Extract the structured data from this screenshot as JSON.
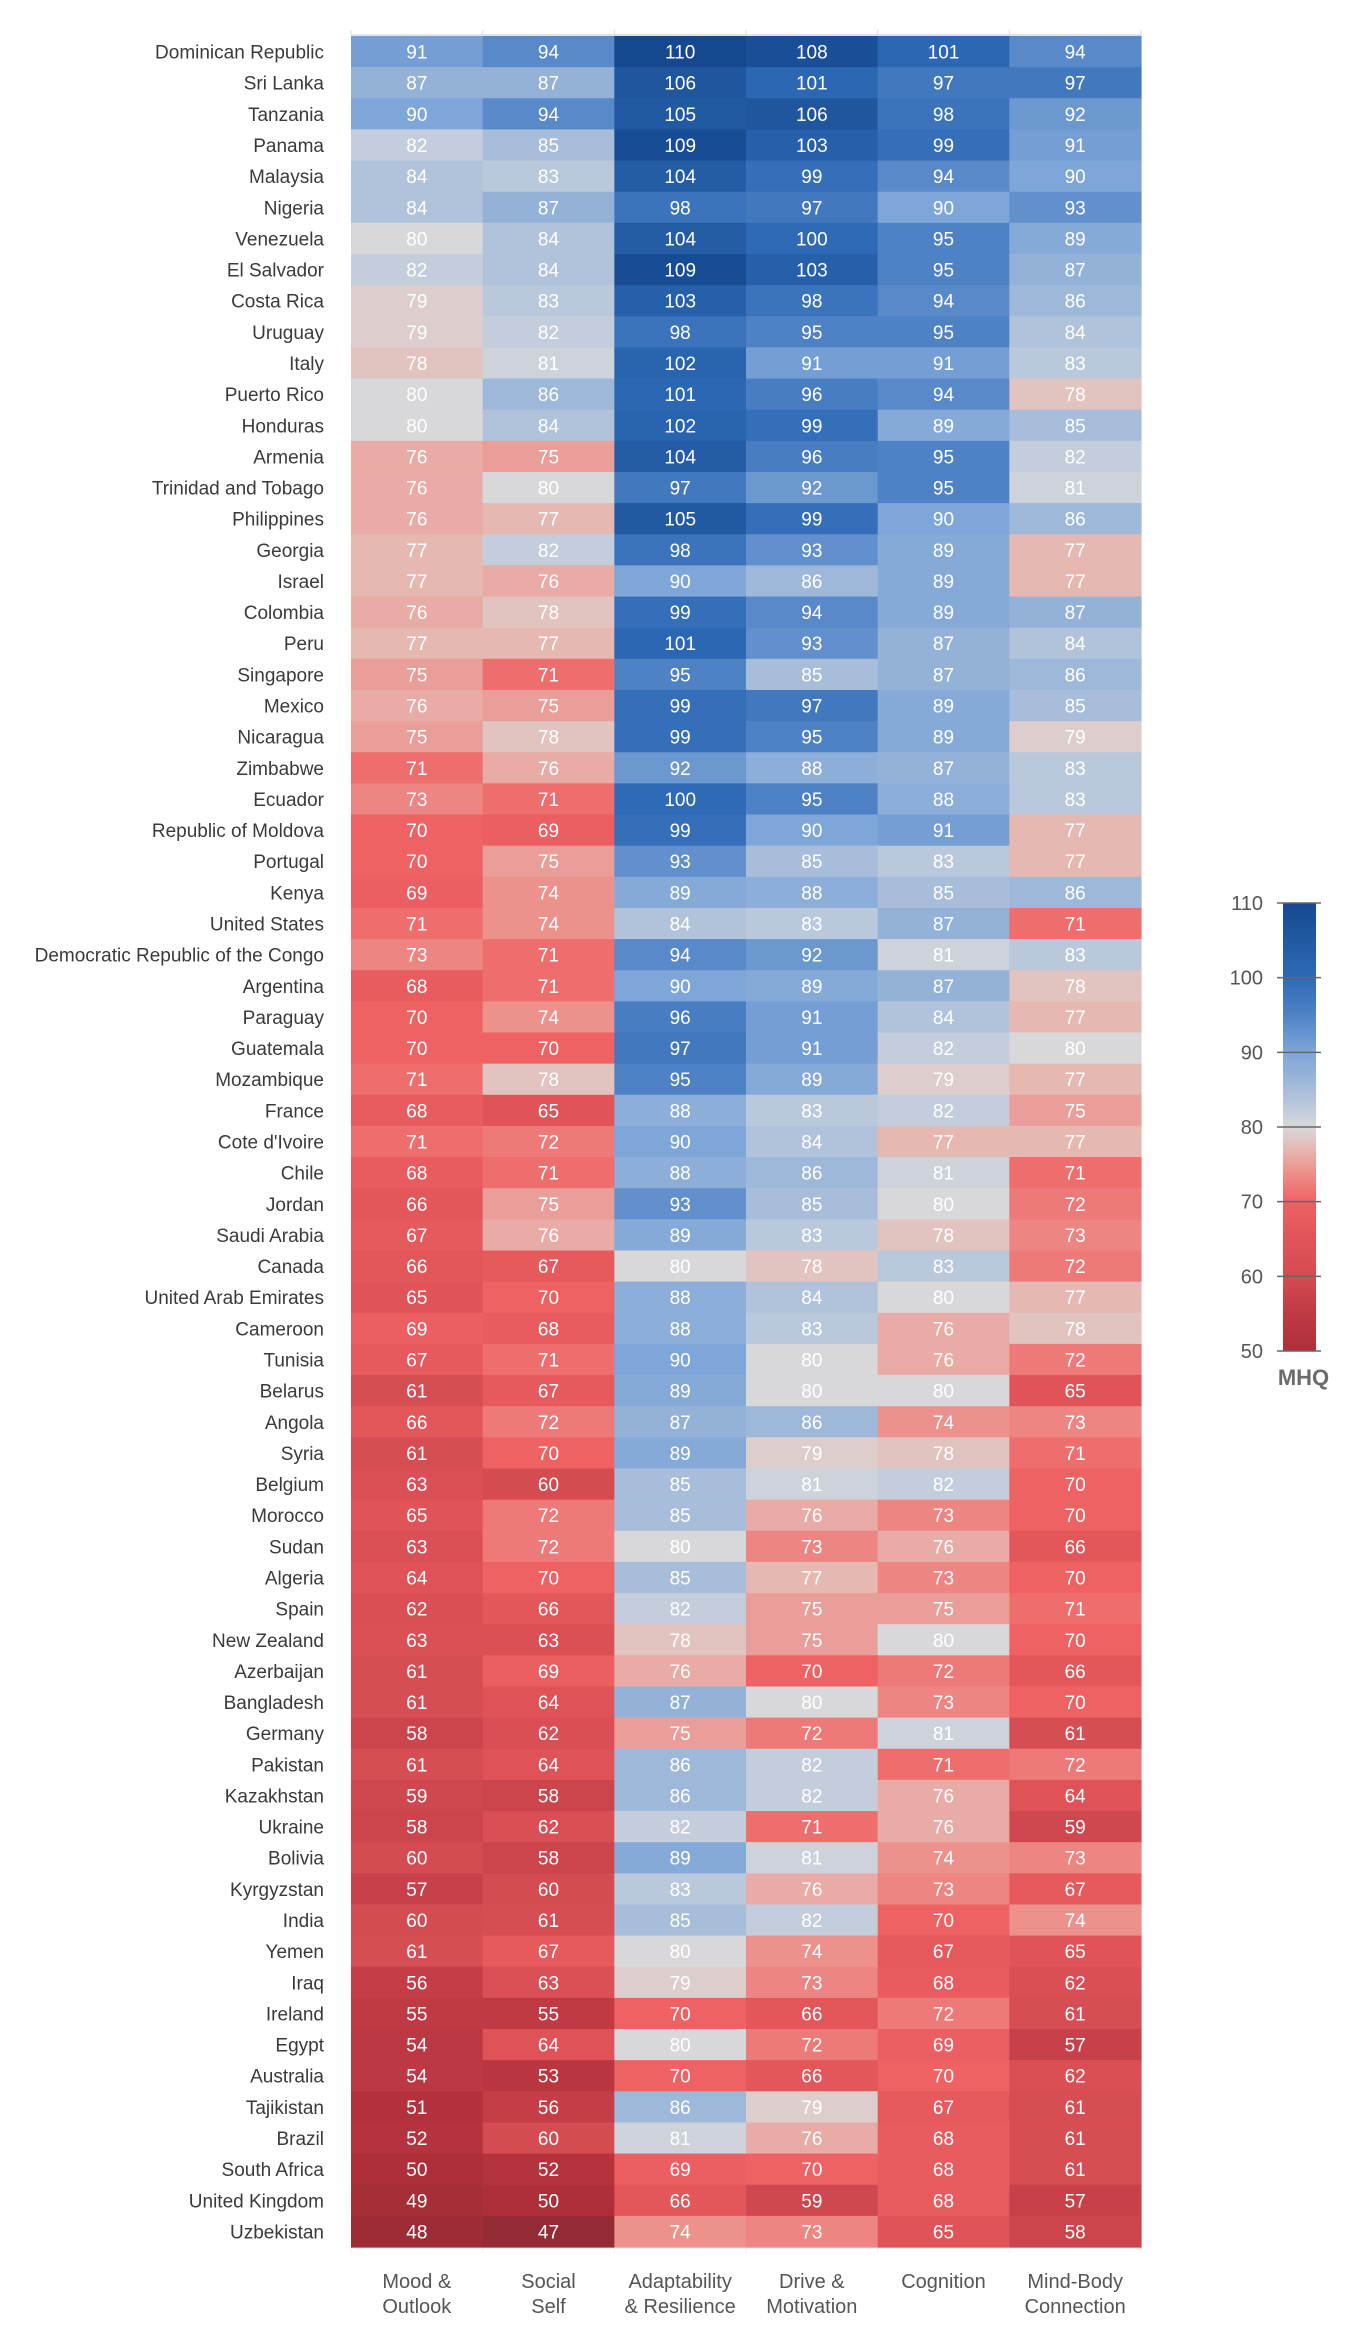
{
  "chart_data": {
    "type": "heatmap",
    "title": "",
    "xlabel": "",
    "ylabel": "",
    "columns": [
      [
        "Mood &",
        "Outlook"
      ],
      [
        "Social",
        "Self"
      ],
      [
        "Adaptability",
        "& Resilience"
      ],
      [
        "Drive &",
        "Motivation"
      ],
      [
        "Cognition"
      ],
      [
        "Mind-Body",
        "Connection"
      ]
    ],
    "rows": [
      {
        "country": "Dominican Republic",
        "values": [
          91,
          94,
          110,
          108,
          101,
          94
        ]
      },
      {
        "country": "Sri Lanka",
        "values": [
          87,
          87,
          106,
          101,
          97,
          97
        ]
      },
      {
        "country": "Tanzania",
        "values": [
          90,
          94,
          105,
          106,
          98,
          92
        ]
      },
      {
        "country": "Panama",
        "values": [
          82,
          85,
          109,
          103,
          99,
          91
        ]
      },
      {
        "country": "Malaysia",
        "values": [
          84,
          83,
          104,
          99,
          94,
          90
        ]
      },
      {
        "country": "Nigeria",
        "values": [
          84,
          87,
          98,
          97,
          90,
          93
        ]
      },
      {
        "country": "Venezuela",
        "values": [
          80,
          84,
          104,
          100,
          95,
          89
        ]
      },
      {
        "country": "El Salvador",
        "values": [
          82,
          84,
          109,
          103,
          95,
          87
        ]
      },
      {
        "country": "Costa Rica",
        "values": [
          79,
          83,
          103,
          98,
          94,
          86
        ]
      },
      {
        "country": "Uruguay",
        "values": [
          79,
          82,
          98,
          95,
          95,
          84
        ]
      },
      {
        "country": "Italy",
        "values": [
          78,
          81,
          102,
          91,
          91,
          83
        ]
      },
      {
        "country": "Puerto Rico",
        "values": [
          80,
          86,
          101,
          96,
          94,
          78
        ]
      },
      {
        "country": "Honduras",
        "values": [
          80,
          84,
          102,
          99,
          89,
          85
        ]
      },
      {
        "country": "Armenia",
        "values": [
          76,
          75,
          104,
          96,
          95,
          82
        ]
      },
      {
        "country": "Trinidad and Tobago",
        "values": [
          76,
          80,
          97,
          92,
          95,
          81
        ]
      },
      {
        "country": "Philippines",
        "values": [
          76,
          77,
          105,
          99,
          90,
          86
        ]
      },
      {
        "country": "Georgia",
        "values": [
          77,
          82,
          98,
          93,
          89,
          77
        ]
      },
      {
        "country": "Israel",
        "values": [
          77,
          76,
          90,
          86,
          89,
          77
        ]
      },
      {
        "country": "Colombia",
        "values": [
          76,
          78,
          99,
          94,
          89,
          87
        ]
      },
      {
        "country": "Peru",
        "values": [
          77,
          77,
          101,
          93,
          87,
          84
        ]
      },
      {
        "country": "Singapore",
        "values": [
          75,
          71,
          95,
          85,
          87,
          86
        ]
      },
      {
        "country": "Mexico",
        "values": [
          76,
          75,
          99,
          97,
          89,
          85
        ]
      },
      {
        "country": "Nicaragua",
        "values": [
          75,
          78,
          99,
          95,
          89,
          79
        ]
      },
      {
        "country": "Zimbabwe",
        "values": [
          71,
          76,
          92,
          88,
          87,
          83
        ]
      },
      {
        "country": "Ecuador",
        "values": [
          73,
          71,
          100,
          95,
          88,
          83
        ]
      },
      {
        "country": "Republic of Moldova",
        "values": [
          70,
          69,
          99,
          90,
          91,
          77
        ]
      },
      {
        "country": "Portugal",
        "values": [
          70,
          75,
          93,
          85,
          83,
          77
        ]
      },
      {
        "country": "Kenya",
        "values": [
          69,
          74,
          89,
          88,
          85,
          86
        ]
      },
      {
        "country": "United States",
        "values": [
          71,
          74,
          84,
          83,
          87,
          71
        ]
      },
      {
        "country": "Democratic Republic of the Congo",
        "values": [
          73,
          71,
          94,
          92,
          81,
          83
        ]
      },
      {
        "country": "Argentina",
        "values": [
          68,
          71,
          90,
          89,
          87,
          78
        ]
      },
      {
        "country": "Paraguay",
        "values": [
          70,
          74,
          96,
          91,
          84,
          77
        ]
      },
      {
        "country": "Guatemala",
        "values": [
          70,
          70,
          97,
          91,
          82,
          80
        ]
      },
      {
        "country": "Mozambique",
        "values": [
          71,
          78,
          95,
          89,
          79,
          77
        ]
      },
      {
        "country": "France",
        "values": [
          68,
          65,
          88,
          83,
          82,
          75
        ]
      },
      {
        "country": "Cote d'Ivoire",
        "values": [
          71,
          72,
          90,
          84,
          77,
          77
        ]
      },
      {
        "country": "Chile",
        "values": [
          68,
          71,
          88,
          86,
          81,
          71
        ]
      },
      {
        "country": "Jordan",
        "values": [
          66,
          75,
          93,
          85,
          80,
          72
        ]
      },
      {
        "country": "Saudi Arabia",
        "values": [
          67,
          76,
          89,
          83,
          78,
          73
        ]
      },
      {
        "country": "Canada",
        "values": [
          66,
          67,
          80,
          78,
          83,
          72
        ]
      },
      {
        "country": "United Arab Emirates",
        "values": [
          65,
          70,
          88,
          84,
          80,
          77
        ]
      },
      {
        "country": "Cameroon",
        "values": [
          69,
          68,
          88,
          83,
          76,
          78
        ]
      },
      {
        "country": "Tunisia",
        "values": [
          67,
          71,
          90,
          80,
          76,
          72
        ]
      },
      {
        "country": "Belarus",
        "values": [
          61,
          67,
          89,
          80,
          80,
          65
        ]
      },
      {
        "country": "Angola",
        "values": [
          66,
          72,
          87,
          86,
          74,
          73
        ]
      },
      {
        "country": "Syria",
        "values": [
          61,
          70,
          89,
          79,
          78,
          71
        ]
      },
      {
        "country": "Belgium",
        "values": [
          63,
          60,
          85,
          81,
          82,
          70
        ]
      },
      {
        "country": "Morocco",
        "values": [
          65,
          72,
          85,
          76,
          73,
          70
        ]
      },
      {
        "country": "Sudan",
        "values": [
          63,
          72,
          80,
          73,
          76,
          66
        ]
      },
      {
        "country": "Algeria",
        "values": [
          64,
          70,
          85,
          77,
          73,
          70
        ]
      },
      {
        "country": "Spain",
        "values": [
          62,
          66,
          82,
          75,
          75,
          71
        ]
      },
      {
        "country": "New Zealand",
        "values": [
          63,
          63,
          78,
          75,
          80,
          70
        ]
      },
      {
        "country": "Azerbaijan",
        "values": [
          61,
          69,
          76,
          70,
          72,
          66
        ]
      },
      {
        "country": "Bangladesh",
        "values": [
          61,
          64,
          87,
          80,
          73,
          70
        ]
      },
      {
        "country": "Germany",
        "values": [
          58,
          62,
          75,
          72,
          81,
          61
        ]
      },
      {
        "country": "Pakistan",
        "values": [
          61,
          64,
          86,
          82,
          71,
          72
        ]
      },
      {
        "country": "Kazakhstan",
        "values": [
          59,
          58,
          86,
          82,
          76,
          64
        ]
      },
      {
        "country": "Ukraine",
        "values": [
          58,
          62,
          82,
          71,
          76,
          59
        ]
      },
      {
        "country": "Bolivia",
        "values": [
          60,
          58,
          89,
          81,
          74,
          73
        ]
      },
      {
        "country": "Kyrgyzstan",
        "values": [
          57,
          60,
          83,
          76,
          73,
          67
        ]
      },
      {
        "country": "India",
        "values": [
          60,
          61,
          85,
          82,
          70,
          74
        ]
      },
      {
        "country": "Yemen",
        "values": [
          61,
          67,
          80,
          74,
          67,
          65
        ]
      },
      {
        "country": "Iraq",
        "values": [
          56,
          63,
          79,
          73,
          68,
          62
        ]
      },
      {
        "country": "Ireland",
        "values": [
          55,
          55,
          70,
          66,
          72,
          61
        ]
      },
      {
        "country": "Egypt",
        "values": [
          54,
          64,
          80,
          72,
          69,
          57
        ]
      },
      {
        "country": "Australia",
        "values": [
          54,
          53,
          70,
          66,
          70,
          62
        ]
      },
      {
        "country": "Tajikistan",
        "values": [
          51,
          56,
          86,
          79,
          67,
          61
        ]
      },
      {
        "country": "Brazil",
        "values": [
          52,
          60,
          81,
          76,
          68,
          61
        ]
      },
      {
        "country": "South Africa",
        "values": [
          50,
          52,
          69,
          70,
          68,
          61
        ]
      },
      {
        "country": "United Kingdom",
        "values": [
          49,
          50,
          66,
          59,
          68,
          57
        ]
      },
      {
        "country": "Uzbekistan",
        "values": [
          48,
          47,
          74,
          73,
          65,
          58
        ]
      }
    ],
    "colorbar": {
      "title": "MHQ",
      "range": [
        50,
        110
      ],
      "ticks": [
        50,
        60,
        70,
        80,
        90,
        100,
        110
      ],
      "stops": [
        {
          "value": 47,
          "color": "#942b34"
        },
        {
          "value": 50,
          "color": "#ae2f39"
        },
        {
          "value": 55,
          "color": "#c03a44"
        },
        {
          "value": 60,
          "color": "#d44b52"
        },
        {
          "value": 65,
          "color": "#e05459"
        },
        {
          "value": 70,
          "color": "#ee6264"
        },
        {
          "value": 74,
          "color": "#ec918c"
        },
        {
          "value": 77,
          "color": "#e6b8b2"
        },
        {
          "value": 80,
          "color": "#d8d8da"
        },
        {
          "value": 83,
          "color": "#bac8dc"
        },
        {
          "value": 87,
          "color": "#94b2d8"
        },
        {
          "value": 90,
          "color": "#7fa6d8"
        },
        {
          "value": 95,
          "color": "#4f82c4"
        },
        {
          "value": 100,
          "color": "#2e6ab6"
        },
        {
          "value": 105,
          "color": "#215aa2"
        },
        {
          "value": 110,
          "color": "#164890"
        }
      ]
    }
  }
}
